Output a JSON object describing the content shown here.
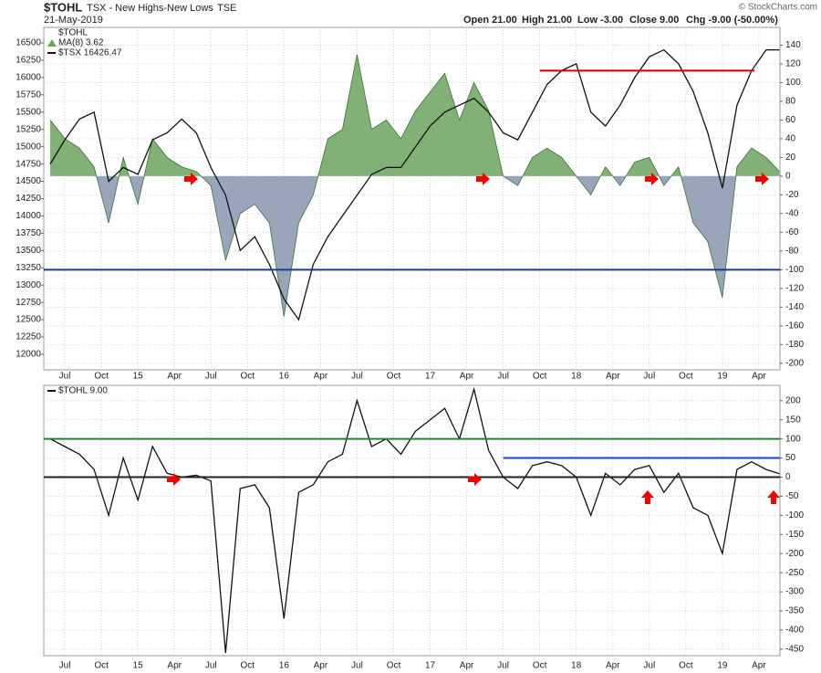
{
  "header": {
    "symbol": "$TOHL",
    "description": "TSX - New Highs-New Lows",
    "exchange": "TSE",
    "date": "21-May-2019",
    "quote": [
      "Open 21.00",
      "High 21.00",
      "Low -3.00",
      "Close 9.00",
      "Chg -9.00 (-50.00%)"
    ],
    "credit": "© StockCharts.com"
  },
  "chart_data": [
    {
      "type": "line",
      "title": "$TOHL",
      "grid": true,
      "y_axis_position": "left",
      "xlim": [
        2014.356,
        2019.394
      ],
      "xticks": [
        {
          "value": 2014.5,
          "label": "Jul"
        },
        {
          "value": 2014.75,
          "label": "Oct"
        },
        {
          "value": 2015,
          "label": "15"
        },
        {
          "value": 2015.25,
          "label": "Apr"
        },
        {
          "value": 2015.5,
          "label": "Jul"
        },
        {
          "value": 2015.75,
          "label": "Oct"
        },
        {
          "value": 2016,
          "label": "16"
        },
        {
          "value": 2016.25,
          "label": "Apr"
        },
        {
          "value": 2016.5,
          "label": "Jul"
        },
        {
          "value": 2016.75,
          "label": "Oct"
        },
        {
          "value": 2017,
          "label": "17"
        },
        {
          "value": 2017.25,
          "label": "Apr"
        },
        {
          "value": 2017.5,
          "label": "Jul"
        },
        {
          "value": 2017.75,
          "label": "Oct"
        },
        {
          "value": 2018,
          "label": "18"
        },
        {
          "value": 2018.25,
          "label": "Apr"
        },
        {
          "value": 2018.5,
          "label": "Jul"
        },
        {
          "value": 2018.75,
          "label": "Oct"
        },
        {
          "value": 2019,
          "label": "19"
        },
        {
          "value": 2019.25,
          "label": "Apr"
        }
      ],
      "ylim": [
        11775,
        16725
      ],
      "yticks": [
        12000,
        12250,
        12500,
        12750,
        13000,
        13250,
        13500,
        13750,
        14000,
        14250,
        14500,
        14750,
        15000,
        15250,
        15500,
        15750,
        16000,
        16250,
        16500
      ],
      "y2lim": [
        -207,
        159
      ],
      "y2ticks": [
        -200,
        -180,
        -160,
        -140,
        -120,
        -100,
        -80,
        -60,
        -40,
        -20,
        0,
        20,
        40,
        60,
        80,
        100,
        120,
        140
      ],
      "x": [
        2014.4,
        2014.5,
        2014.6,
        2014.7,
        2014.8,
        2014.9,
        2015.0,
        2015.1,
        2015.2,
        2015.3,
        2015.4,
        2015.5,
        2015.6,
        2015.7,
        2015.8,
        2015.9,
        2016.0,
        2016.1,
        2016.2,
        2016.3,
        2016.4,
        2016.5,
        2016.6,
        2016.7,
        2016.8,
        2016.9,
        2017.0,
        2017.1,
        2017.2,
        2017.3,
        2017.4,
        2017.5,
        2017.6,
        2017.7,
        2017.8,
        2017.9,
        2018.0,
        2018.1,
        2018.2,
        2018.3,
        2018.4,
        2018.5,
        2018.6,
        2018.7,
        2018.8,
        2018.9,
        2019.0,
        2019.1,
        2019.2,
        2019.3,
        2019.39
      ],
      "series": [
        {
          "name": "MA(8) 3.62",
          "style": "area",
          "axis": "y2",
          "color": "#6ba35e",
          "negative_color": "#8e9bb2",
          "values": [
            60,
            40,
            30,
            10,
            -50,
            20,
            -30,
            40,
            20,
            10,
            5,
            -10,
            -90,
            -40,
            -30,
            -50,
            -150,
            -50,
            -20,
            40,
            50,
            130,
            50,
            60,
            40,
            70,
            90,
            110,
            60,
            100,
            70,
            0,
            -10,
            20,
            30,
            20,
            0,
            -20,
            10,
            -10,
            15,
            20,
            -10,
            10,
            -50,
            -70,
            -130,
            10,
            30,
            20,
            5
          ]
        },
        {
          "name": "$TSX 16426.47",
          "style": "line",
          "color": "#111111",
          "values": [
            14750,
            15100,
            15400,
            15500,
            14500,
            14700,
            14600,
            15100,
            15200,
            15400,
            15200,
            14700,
            14300,
            13500,
            13700,
            13300,
            12800,
            12500,
            13300,
            13700,
            14000,
            14300,
            14600,
            14700,
            14700,
            15000,
            15300,
            15500,
            15600,
            15700,
            15500,
            15200,
            15100,
            15500,
            15900,
            16100,
            16200,
            15500,
            15300,
            15600,
            16000,
            16300,
            16400,
            16200,
            15800,
            15200,
            14400,
            15600,
            16100,
            16400,
            16400
          ]
        }
      ],
      "reference_lines": [
        {
          "value": 16100,
          "color": "#cc0000",
          "x_range": [
            2017.75,
            2019.22
          ]
        },
        {
          "value": -100,
          "color": "#1a3a8a",
          "axis": "y2"
        }
      ]
    },
    {
      "type": "line",
      "grid": true,
      "y_axis_position": "right",
      "xlim": [
        2014.356,
        2019.394
      ],
      "xticks": [
        {
          "value": 2014.5,
          "label": "Jul"
        },
        {
          "value": 2014.75,
          "label": "Oct"
        },
        {
          "value": 2015,
          "label": "15"
        },
        {
          "value": 2015.25,
          "label": "Apr"
        },
        {
          "value": 2015.5,
          "label": "Jul"
        },
        {
          "value": 2015.75,
          "label": "Oct"
        },
        {
          "value": 2016,
          "label": "16"
        },
        {
          "value": 2016.25,
          "label": "Apr"
        },
        {
          "value": 2016.5,
          "label": "Jul"
        },
        {
          "value": 2016.75,
          "label": "Oct"
        },
        {
          "value": 2017,
          "label": "17"
        },
        {
          "value": 2017.25,
          "label": "Apr"
        },
        {
          "value": 2017.5,
          "label": "Jul"
        },
        {
          "value": 2017.75,
          "label": "Oct"
        },
        {
          "value": 2018,
          "label": "18"
        },
        {
          "value": 2018.25,
          "label": "Apr"
        },
        {
          "value": 2018.5,
          "label": "Jul"
        },
        {
          "value": 2018.75,
          "label": "Oct"
        },
        {
          "value": 2019,
          "label": "19"
        },
        {
          "value": 2019.25,
          "label": "Apr"
        }
      ],
      "ylim": [
        -467,
        240
      ],
      "yticks": [
        -450,
        -400,
        -350,
        -300,
        -250,
        -200,
        -150,
        -100,
        -50,
        0,
        50,
        100,
        150,
        200
      ],
      "x": [
        2014.4,
        2014.5,
        2014.6,
        2014.7,
        2014.8,
        2014.9,
        2015.0,
        2015.1,
        2015.2,
        2015.3,
        2015.4,
        2015.5,
        2015.6,
        2015.7,
        2015.8,
        2015.9,
        2016.0,
        2016.1,
        2016.2,
        2016.3,
        2016.4,
        2016.5,
        2016.6,
        2016.7,
        2016.8,
        2016.9,
        2017.0,
        2017.1,
        2017.2,
        2017.3,
        2017.4,
        2017.5,
        2017.6,
        2017.7,
        2017.8,
        2017.9,
        2018.0,
        2018.1,
        2018.2,
        2018.3,
        2018.4,
        2018.5,
        2018.6,
        2018.7,
        2018.8,
        2018.9,
        2019.0,
        2019.1,
        2019.2,
        2019.3,
        2019.39
      ],
      "series": [
        {
          "name": "$TOHL 9.00",
          "style": "line",
          "color": "#111111",
          "values": [
            100,
            80,
            60,
            20,
            -100,
            50,
            -60,
            80,
            10,
            0,
            5,
            -10,
            -460,
            -30,
            -20,
            -80,
            -370,
            -40,
            -20,
            40,
            60,
            200,
            80,
            100,
            60,
            120,
            150,
            180,
            100,
            230,
            70,
            0,
            -30,
            30,
            40,
            30,
            0,
            -100,
            10,
            -20,
            20,
            30,
            -40,
            10,
            -80,
            -100,
            -200,
            20,
            40,
            20,
            9
          ]
        }
      ],
      "reference_lines": [
        {
          "value": 100,
          "color": "#2e7d32"
        },
        {
          "value": 0,
          "color": "#222222"
        },
        {
          "value": 50,
          "color": "#1f3fcf",
          "x_range": [
            2017.5,
            2019.394
          ]
        }
      ]
    }
  ]
}
